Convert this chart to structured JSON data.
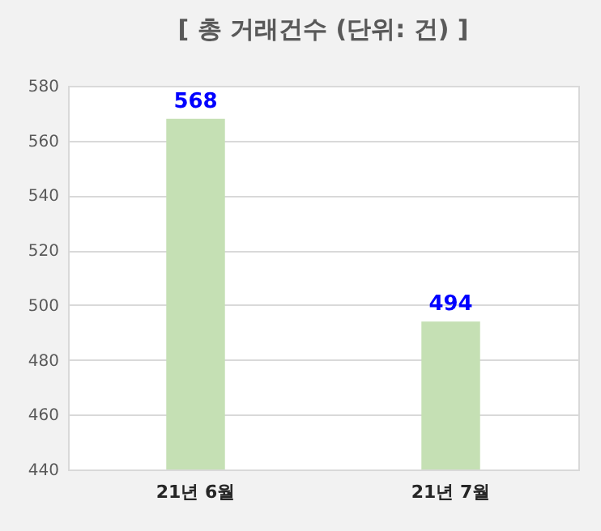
{
  "chart_data": {
    "type": "bar",
    "title": "[ 총 거래건수 (단위: 건) ]",
    "categories": [
      "21년 6월",
      "21년 7월"
    ],
    "values": [
      568,
      494
    ],
    "color": "#c5e0b4",
    "ylim": [
      440,
      580
    ],
    "yticks": [
      440,
      460,
      480,
      500,
      520,
      540,
      560,
      580
    ],
    "grid": "y",
    "data_labels": true
  }
}
